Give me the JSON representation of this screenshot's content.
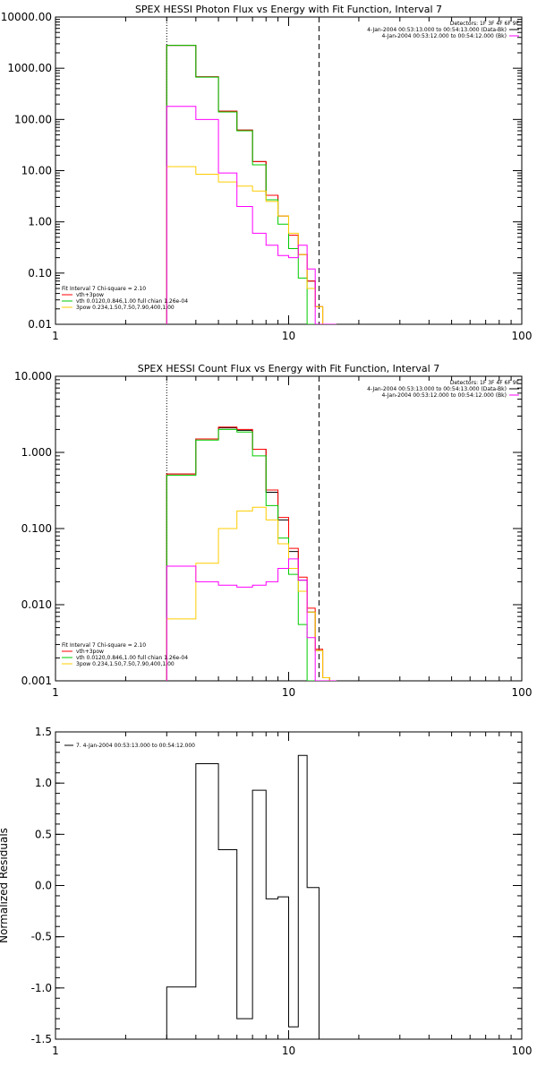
{
  "chart_data": [
    {
      "type": "line",
      "scale": "log-log",
      "title": "SPEX HESSI Photon Flux vs Energy with Fit Function, Interval 7",
      "xlabel": "",
      "ylabel": "",
      "xlim": [
        1,
        100
      ],
      "ylim": [
        0.01,
        10000
      ],
      "x_ticks": [
        "1",
        "10",
        "100"
      ],
      "y_ticks": [
        "10000.00",
        "1000.00",
        "100.00",
        "10.00",
        "1.00",
        "0.10",
        "0.01"
      ],
      "vlines": [
        {
          "x": 3,
          "style": "dotted"
        },
        {
          "x": 13.5,
          "style": "dashed"
        }
      ],
      "info": {
        "detectors": "Detectors: 1F 3F 4F 6F 9F",
        "lines": [
          {
            "text": "4-Jan-2004 00:53:13.000 to 00:54:13.000 (Data-Bk)",
            "color": "#000000"
          },
          {
            "text": "4-Jan-2004 00:53:12.000 to 00:54:12.000 (Bk)",
            "color": "#ff00ff"
          }
        ]
      },
      "legend": {
        "placement": "bottom-left",
        "header": "Fit Interval 7   Chi-square = 2.10",
        "entries": [
          {
            "label": "vth+3pow",
            "color": "#ff0000"
          },
          {
            "label": "vth 0.0120,0.846,1.00  full chian 1.26e-04",
            "color": "#00cc00"
          },
          {
            "label": "3pow 0.234,1.50,7.50,7.90,400,1.00",
            "color": "#ffcc00"
          }
        ]
      },
      "bin_edges": [
        3,
        4,
        5,
        6,
        7,
        8,
        9,
        10,
        11,
        12,
        13,
        14,
        15,
        16
      ],
      "series": [
        {
          "name": "Data-Bk",
          "color": "#000000",
          "values": [
            2800,
            680,
            145,
            62,
            15,
            3.3,
            1.3,
            0.55,
            0.23,
            0.07,
            0.022,
            0.009,
            0.009
          ]
        },
        {
          "name": "vth+3pow",
          "color": "#ff0000",
          "values": [
            2800,
            680,
            145,
            62,
            15,
            3.3,
            1.3,
            0.55,
            0.23,
            0.07,
            0.022,
            0.009,
            0.009
          ]
        },
        {
          "name": "vth",
          "color": "#00cc00",
          "values": [
            2800,
            670,
            140,
            60,
            13,
            2.7,
            0.9,
            0.3,
            0.08,
            0.01,
            0.009,
            0.009,
            0.009
          ]
        },
        {
          "name": "3pow",
          "color": "#ffcc00",
          "values": [
            12,
            8.5,
            6,
            5,
            4,
            2.5,
            1.3,
            0.6,
            0.23,
            0.05,
            0.022,
            0.009,
            0.009
          ]
        },
        {
          "name": "Bk",
          "color": "#ff00ff",
          "values": [
            180,
            100,
            9,
            2,
            0.6,
            0.35,
            0.22,
            0.2,
            0.35,
            0.12,
            0.009,
            0.009,
            0.009
          ]
        }
      ]
    },
    {
      "type": "line",
      "scale": "log-log",
      "title": "SPEX HESSI Count Flux vs Energy with Fit Function, Interval 7",
      "xlabel": "",
      "ylabel": "",
      "xlim": [
        1,
        100
      ],
      "ylim": [
        0.001,
        10
      ],
      "x_ticks": [
        "1",
        "10",
        "100"
      ],
      "y_ticks": [
        "10.000",
        "1.000",
        "0.100",
        "0.010",
        "0.001"
      ],
      "vlines": [
        {
          "x": 3,
          "style": "dotted"
        },
        {
          "x": 13.5,
          "style": "dashed"
        }
      ],
      "info": {
        "detectors": "Detectors: 1F 3F 4F 6F 9F",
        "lines": [
          {
            "text": "4-Jan-2004 00:53:13.000 to 00:54:13.000 (Data-Bk)",
            "color": "#000000"
          },
          {
            "text": "4-Jan-2004 00:53:12.000 to 00:54:12.000 (Bk)",
            "color": "#ff00ff"
          }
        ]
      },
      "legend": {
        "placement": "bottom-left",
        "header": "Fit Interval 7   Chi-square = 2.10",
        "entries": [
          {
            "label": "vth+3pow",
            "color": "#ff0000"
          },
          {
            "label": "vth 0.0120,0.846,1.00  full chian 1.26e-04",
            "color": "#00cc00"
          },
          {
            "label": "3pow 0.234,1.50,7.50,7.90,400,1.00",
            "color": "#ffcc00"
          }
        ]
      },
      "bin_edges": [
        3,
        4,
        5,
        6,
        7,
        8,
        9,
        10,
        11,
        12,
        13,
        14,
        15,
        16
      ],
      "series": [
        {
          "name": "Data-Bk",
          "color": "#000000",
          "values": [
            0.52,
            1.5,
            2.1,
            1.95,
            1.1,
            0.3,
            0.13,
            0.05,
            0.021,
            0.008,
            0.0025,
            0.0011,
            0.0009
          ]
        },
        {
          "name": "vth+3pow",
          "color": "#ff0000",
          "values": [
            0.52,
            1.5,
            2.15,
            2.0,
            1.1,
            0.32,
            0.14,
            0.055,
            0.023,
            0.009,
            0.0026,
            0.0011,
            0.0009
          ]
        },
        {
          "name": "vth",
          "color": "#00cc00",
          "values": [
            0.5,
            1.45,
            2.0,
            1.85,
            0.9,
            0.2,
            0.075,
            0.025,
            0.0055,
            0.0009,
            0.0009,
            0.0009,
            0.0009
          ]
        },
        {
          "name": "3pow",
          "color": "#ffcc00",
          "values": [
            0.0065,
            0.035,
            0.1,
            0.17,
            0.19,
            0.13,
            0.063,
            0.03,
            0.015,
            0.008,
            0.0025,
            0.0011,
            0.0009
          ]
        },
        {
          "name": "Bk",
          "color": "#ff00ff",
          "values": [
            0.032,
            0.02,
            0.018,
            0.017,
            0.018,
            0.02,
            0.03,
            0.04,
            0.021,
            0.0037,
            0.0009,
            0.0009,
            0.0009
          ]
        }
      ]
    },
    {
      "type": "line",
      "scale": "log-x",
      "title": "",
      "xlabel": "",
      "ylabel": "Normalized Residuals",
      "xlim": [
        1,
        100
      ],
      "ylim": [
        -1.5,
        1.5
      ],
      "x_ticks": [
        "1",
        "10",
        "100"
      ],
      "y_ticks": [
        "1.5",
        "1.0",
        "0.5",
        "0.0",
        "-0.5",
        "-1.0",
        "-1.5"
      ],
      "legend": {
        "placement": "top-left",
        "entries": [
          {
            "label": "7.  4-Jan-2004 00:53:13.000 to 00:54:12.000",
            "color": "#000000"
          }
        ]
      },
      "bin_edges": [
        3,
        4,
        5,
        6,
        7,
        8,
        9,
        10,
        11,
        12,
        13.5
      ],
      "series": [
        {
          "name": "7.",
          "color": "#000000",
          "values": [
            -0.99,
            1.19,
            0.35,
            -1.3,
            0.93,
            -0.13,
            -0.11,
            -1.38,
            1.27,
            -0.02
          ]
        }
      ]
    }
  ]
}
